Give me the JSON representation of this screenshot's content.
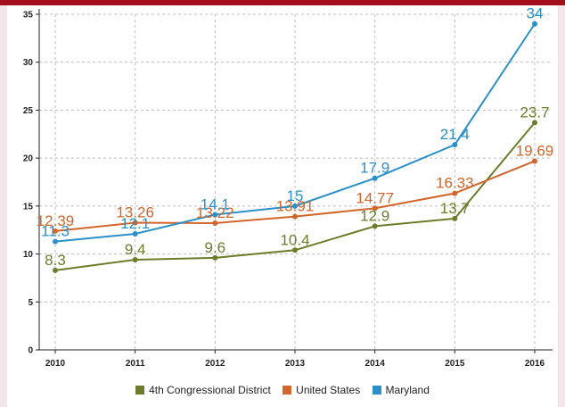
{
  "chart_data": {
    "type": "line",
    "x": [
      "2010",
      "2011",
      "2012",
      "2013",
      "2014",
      "2015",
      "2016"
    ],
    "ylim": [
      0,
      35
    ],
    "yticks": [
      0,
      5,
      10,
      15,
      20,
      25,
      30,
      35
    ],
    "grid": true,
    "legend_position": "bottom",
    "series": [
      {
        "name": "4th Congressional District",
        "color": "#6b7d2a",
        "values": [
          8.3,
          9.4,
          9.6,
          10.4,
          12.9,
          13.7,
          23.7
        ],
        "labels": [
          "8.3",
          "9.4",
          "9.6",
          "10.4",
          "12.9",
          "13.7",
          "23.7"
        ]
      },
      {
        "name": "United States",
        "color": "#d2652b",
        "values": [
          12.39,
          13.26,
          13.22,
          13.91,
          14.77,
          16.33,
          19.69
        ],
        "labels": [
          "12.39",
          "13.26",
          "13.22",
          "13.91",
          "14.77",
          "16.33",
          "19.69"
        ]
      },
      {
        "name": "Maryland",
        "color": "#2b8fc9",
        "values": [
          11.3,
          12.1,
          14.1,
          15,
          17.9,
          21.4,
          34
        ],
        "labels": [
          "11.3",
          "12.1",
          "14.1",
          "15",
          "17.9",
          "21.4",
          "34"
        ]
      }
    ]
  }
}
